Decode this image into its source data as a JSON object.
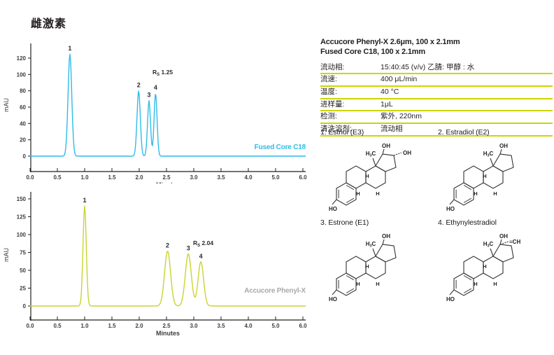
{
  "page": {
    "title": "雌激素"
  },
  "colors": {
    "cyan": "#2fbce8",
    "lime": "#c9d431",
    "lime_rule": "#cdd500",
    "gray_label": "#a9a9a9",
    "ink": "#231f20"
  },
  "chart_data": [
    {
      "type": "line",
      "subtype": "chromatogram",
      "series_label": "Fused Core C18",
      "trace_color": "#2fbce8",
      "label_color": "#2fbce8",
      "xlabel": "Minutes",
      "ylabel": "mAU",
      "xlim": [
        0.0,
        6.0
      ],
      "ylim": [
        0,
        130
      ],
      "xticks": [
        "0.0",
        "0.5",
        "1.0",
        "1.5",
        "2.0",
        "2.5",
        "3.0",
        "3.5",
        "4.0",
        "5.0",
        "6.0"
      ],
      "yticks": [
        0,
        20,
        40,
        60,
        80,
        100,
        120
      ],
      "peaks": [
        {
          "label": "1",
          "rt_min": 0.73,
          "height_mau": 125,
          "sigma_min": 0.034
        },
        {
          "label": "2",
          "rt_min": 1.99,
          "height_mau": 80,
          "sigma_min": 0.03
        },
        {
          "label": "3",
          "rt_min": 2.18,
          "height_mau": 68,
          "sigma_min": 0.027
        },
        {
          "label": "4",
          "rt_min": 2.3,
          "height_mau": 77,
          "sigma_min": 0.027
        }
      ],
      "resolution_annotation": {
        "prefix": "R",
        "sub": "S",
        "value": "1.25"
      }
    },
    {
      "type": "line",
      "subtype": "chromatogram",
      "series_label": "Accucore Phenyl-X",
      "trace_color": "#c9d431",
      "label_color": "#a9a9a9",
      "xlabel": "Minutes",
      "ylabel": "mAU",
      "xlim": [
        0.0,
        6.0
      ],
      "ylim": [
        0,
        155
      ],
      "xticks": [
        "0.0",
        "0.5",
        "1.0",
        "1.5",
        "2.0",
        "2.5",
        "3.0",
        "3.5",
        "4.0",
        "5.0",
        "6.0"
      ],
      "yticks": [
        0,
        25,
        50,
        75,
        100,
        125,
        150
      ],
      "peaks": [
        {
          "label": "1",
          "rt_min": 1.0,
          "height_mau": 140,
          "sigma_min": 0.03
        },
        {
          "label": "2",
          "rt_min": 2.52,
          "height_mau": 77,
          "sigma_min": 0.055
        },
        {
          "label": "3",
          "rt_min": 2.9,
          "height_mau": 73,
          "sigma_min": 0.055
        },
        {
          "label": "4",
          "rt_min": 3.13,
          "height_mau": 62,
          "sigma_min": 0.05
        }
      ],
      "resolution_annotation": {
        "prefix": "R",
        "sub": "S",
        "value": "2.04"
      }
    }
  ],
  "conditions": {
    "header_line1": "Accucore Phenyl-X 2.6μm, 100 x 2.1mm",
    "header_line2": "Fused Core C18, 100 x 2.1mm",
    "rows": [
      {
        "label": "流动相:",
        "value": "15:40:45 (v/v) 乙腈: 甲醇 : 水"
      },
      {
        "label": "流速:",
        "value": "400 μL/min"
      },
      {
        "label": "温度:",
        "value": "40 °C"
      },
      {
        "label": "进样量:",
        "value": "1μL"
      },
      {
        "label": "检测:",
        "value": "紫外, 220nm"
      },
      {
        "label": "清洗溶剂:",
        "value": "流动相"
      }
    ]
  },
  "compounds": [
    {
      "name": "1. Estriol (E3)",
      "labels": {
        "methyl": "H3C",
        "c17": "OH",
        "c16_extra": "OH",
        "phenol": "HO",
        "h": "H"
      }
    },
    {
      "name": "2. Estradiol (E2)",
      "labels": {
        "methyl": "H3C",
        "c17": "OH",
        "phenol": "HO",
        "h": "H"
      }
    },
    {
      "name": "3. Estrone (E1)",
      "labels": {
        "methyl": "H3C",
        "c17": "OH",
        "phenol": "HO",
        "h": "H"
      }
    },
    {
      "name": "4. Ethynylestradiol",
      "labels": {
        "methyl": "H3C",
        "c17": "OH",
        "ethynyl": "≡CH",
        "phenol": "HO",
        "h": "H"
      }
    }
  ]
}
